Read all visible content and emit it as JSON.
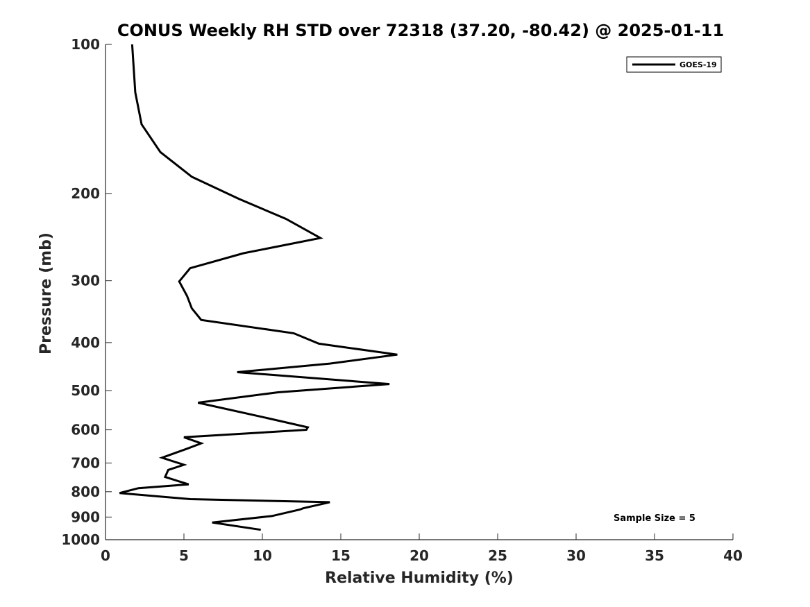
{
  "chart_data": {
    "type": "line",
    "title": "CONUS Weekly RH STD over 72318 (37.20, -80.42) @ 2025-01-11",
    "xlabel": "Relative Humidity (%)",
    "ylabel": "Pressure (mb)",
    "xlim": [
      0,
      40
    ],
    "ylim": [
      100,
      1000
    ],
    "y_scale": "log",
    "y_reversed": true,
    "x_ticks": [
      "0",
      "5",
      "10",
      "15",
      "20",
      "25",
      "30",
      "35",
      "40"
    ],
    "y_ticks": [
      "100",
      "200",
      "300",
      "400",
      "500",
      "600",
      "700",
      "800",
      "900",
      "1000"
    ],
    "grid": false,
    "legend_position": "top-right",
    "series": [
      {
        "name": "GOES-19",
        "color": "#000000",
        "x": [
          1.7,
          1.9,
          2.3,
          3.5,
          5.5,
          8.5,
          11.5,
          13.7,
          8.8,
          5.4,
          4.7,
          5.2,
          5.5,
          6.1,
          12.0,
          13.6,
          18.6,
          14.3,
          8.4,
          18.1,
          11.0,
          5.9,
          10.3,
          12.9,
          12.8,
          5.0,
          6.1,
          5.2,
          3.6,
          5.0,
          4.0,
          3.8,
          5.3,
          2.1,
          0.9,
          5.4,
          14.3,
          12.6,
          12.4,
          10.6,
          6.8,
          9.9
        ],
        "y": [
          100,
          125,
          145,
          165,
          185,
          205,
          225,
          246,
          264,
          283,
          301,
          322,
          341,
          360,
          383,
          402,
          423,
          441,
          459,
          485,
          504,
          529,
          568,
          593,
          600,
          621,
          639,
          655,
          683,
          706,
          723,
          747,
          773,
          787,
          805,
          828,
          840,
          864,
          869,
          896,
          923,
          955
        ]
      }
    ],
    "annotations": [
      "Sample Size = 5"
    ]
  }
}
